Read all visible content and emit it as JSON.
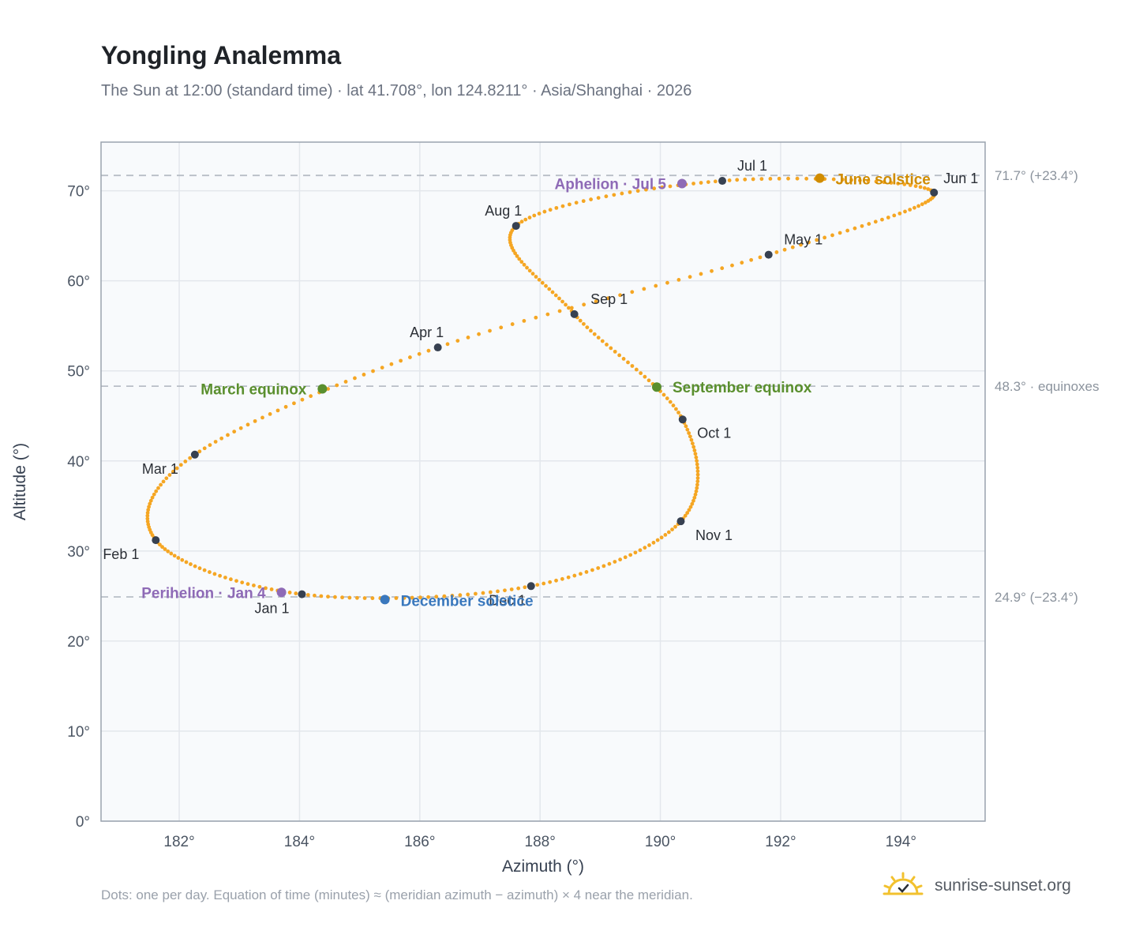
{
  "header": {
    "title": "Yongling Analemma",
    "subtitle": "The Sun at 12:00 (standard time) · lat 41.708°, lon 124.8211° · Asia/Shanghai · 2026"
  },
  "footer": {
    "note": "Dots: one per day. Equation of time (minutes) ≈ (meridian azimuth − azimuth) × 4 near the meridian.",
    "brand": "sunrise-sunset.org"
  },
  "colors": {
    "curve": "#f5a623",
    "month_marker": "#374151",
    "equinox": "#5a8f2e",
    "june_solstice": "#d08c00",
    "december_solstice": "#3a78bd",
    "apsides": "#8e6ab6",
    "reference_line": "#b8bec6",
    "plot_background": "#f8fafc",
    "grid": "#e3e7ec",
    "frame": "#9aa3ae",
    "brand_sun": "#f2c12e"
  },
  "chart_data": {
    "type": "scatter",
    "xlabel": "Azimuth (°)",
    "ylabel": "Altitude (°)",
    "xlim": [
      180.7,
      195.4
    ],
    "ylim": [
      0,
      75.4
    ],
    "xticks": [
      182,
      184,
      186,
      188,
      190,
      192,
      194
    ],
    "xtick_labels": [
      "182°",
      "184°",
      "186°",
      "188°",
      "190°",
      "192°",
      "194°"
    ],
    "yticks": [
      0,
      10,
      20,
      30,
      40,
      50,
      60,
      70
    ],
    "ytick_labels": [
      "0°",
      "10°",
      "20°",
      "30°",
      "40°",
      "50°",
      "60°",
      "70°"
    ],
    "grid": true,
    "reference_lines": [
      {
        "y": 71.7,
        "label": "71.7° (+23.4°)"
      },
      {
        "y": 48.3,
        "label": "48.3° · equinoxes"
      },
      {
        "y": 24.9,
        "label": "24.9° (−23.4°)"
      }
    ],
    "month_markers": [
      {
        "label": "Jan 1",
        "x": 184.04,
        "y": 25.2
      },
      {
        "label": "Feb 1",
        "x": 181.61,
        "y": 31.2
      },
      {
        "label": "Mar 1",
        "x": 182.26,
        "y": 40.7
      },
      {
        "label": "Apr 1",
        "x": 186.3,
        "y": 52.6
      },
      {
        "label": "May 1",
        "x": 191.8,
        "y": 62.9
      },
      {
        "label": "Jun 1",
        "x": 194.55,
        "y": 69.8
      },
      {
        "label": "Jul 1",
        "x": 191.03,
        "y": 71.1
      },
      {
        "label": "Aug 1",
        "x": 187.6,
        "y": 66.1
      },
      {
        "label": "Sep 1",
        "x": 188.57,
        "y": 56.3
      },
      {
        "label": "Oct 1",
        "x": 190.37,
        "y": 44.6
      },
      {
        "label": "Nov 1",
        "x": 190.34,
        "y": 33.3
      },
      {
        "label": "Dec 1",
        "x": 187.85,
        "y": 26.1
      }
    ],
    "events": [
      {
        "label": "March equinox",
        "x": 184.38,
        "y": 48.0,
        "kind": "equinox"
      },
      {
        "label": "September equinox",
        "x": 189.94,
        "y": 48.2,
        "kind": "equinox"
      },
      {
        "label": "June solstice",
        "x": 192.65,
        "y": 71.4,
        "kind": "june_solstice"
      },
      {
        "label": "December solstice",
        "x": 185.42,
        "y": 24.6,
        "kind": "december_solstice"
      },
      {
        "label": "Perihelion · Jan 4",
        "x": 183.7,
        "y": 25.4,
        "kind": "apsides"
      },
      {
        "label": "Aphelion · Jul 5",
        "x": 190.36,
        "y": 70.8,
        "kind": "apsides"
      }
    ]
  }
}
